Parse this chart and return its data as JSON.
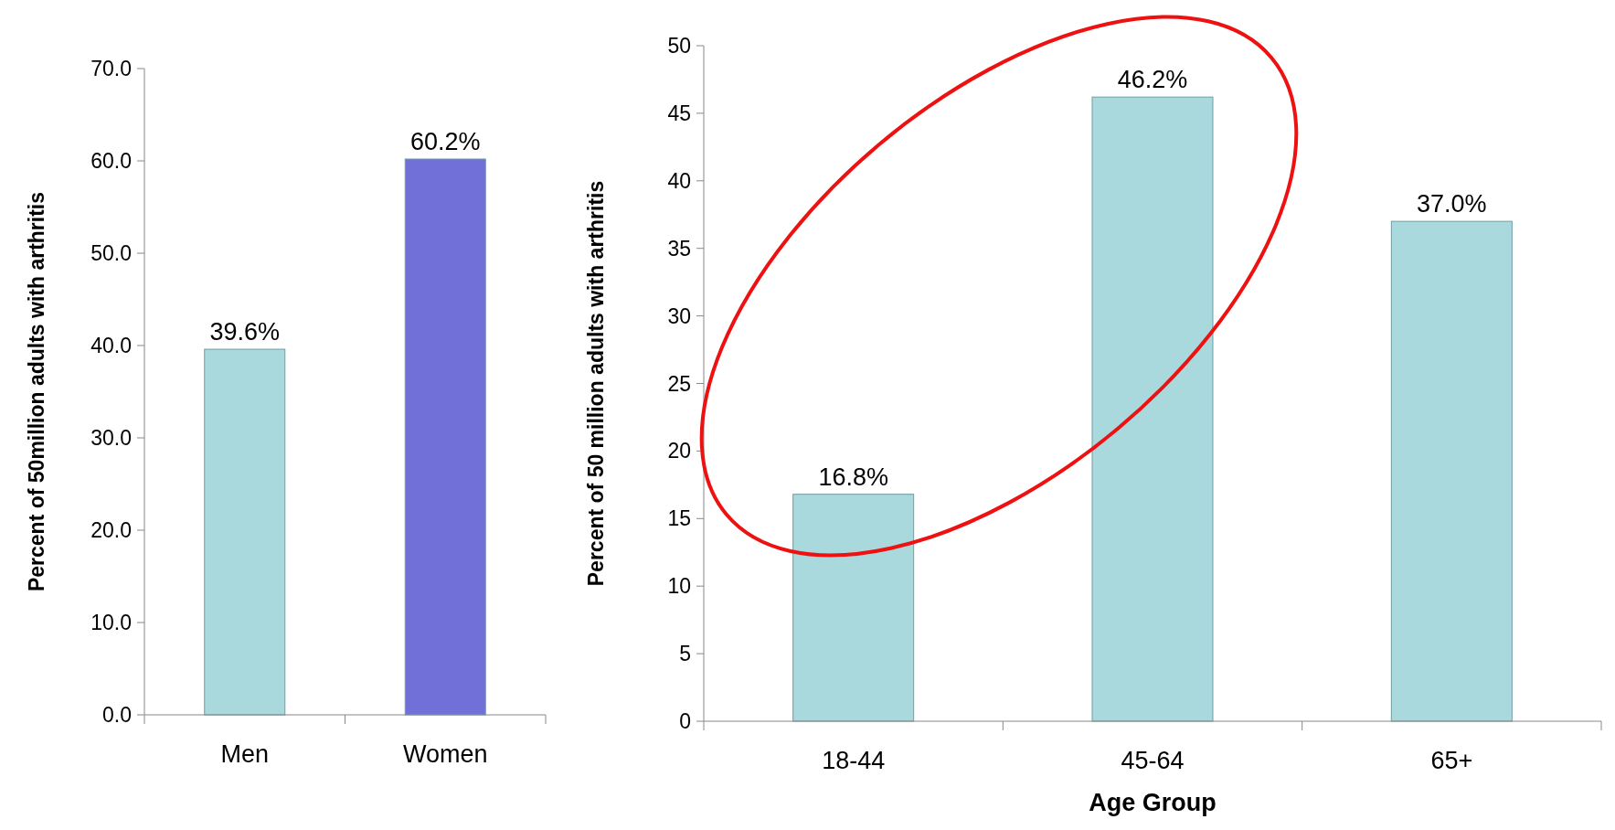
{
  "chart_data": [
    {
      "type": "bar",
      "ylabel": "Percent of 50million adults with arthritis",
      "categories": [
        "Men",
        "Women"
      ],
      "values": [
        39.6,
        60.2
      ],
      "colors": [
        "#a9d8dd",
        "#7070d8"
      ],
      "value_labels": [
        "39.6%",
        "60.2%"
      ],
      "ylim": [
        0,
        70
      ],
      "yticks": [
        {
          "value": 0,
          "label": "0.0"
        },
        {
          "value": 10,
          "label": "10.0"
        },
        {
          "value": 20,
          "label": "20.0"
        },
        {
          "value": 30,
          "label": "30.0"
        },
        {
          "value": 40,
          "label": "40.0"
        },
        {
          "value": 50,
          "label": "50.0"
        },
        {
          "value": 60,
          "label": "60.0"
        },
        {
          "value": 70,
          "label": "70.0"
        }
      ]
    },
    {
      "type": "bar",
      "ylabel": "Percent of 50 million adults with arthritis",
      "xlabel": "Age Group",
      "categories": [
        "18-44",
        "45-64",
        "65+"
      ],
      "values": [
        16.8,
        46.2,
        37.0
      ],
      "colors": [
        "#a9d8dd",
        "#a9d8dd",
        "#a9d8dd"
      ],
      "value_labels": [
        "16.8%",
        "46.2%",
        "37.0%"
      ],
      "ylim": [
        0,
        50
      ],
      "yticks": [
        0,
        5,
        10,
        15,
        20,
        25,
        30,
        35,
        40,
        45,
        50
      ]
    }
  ]
}
